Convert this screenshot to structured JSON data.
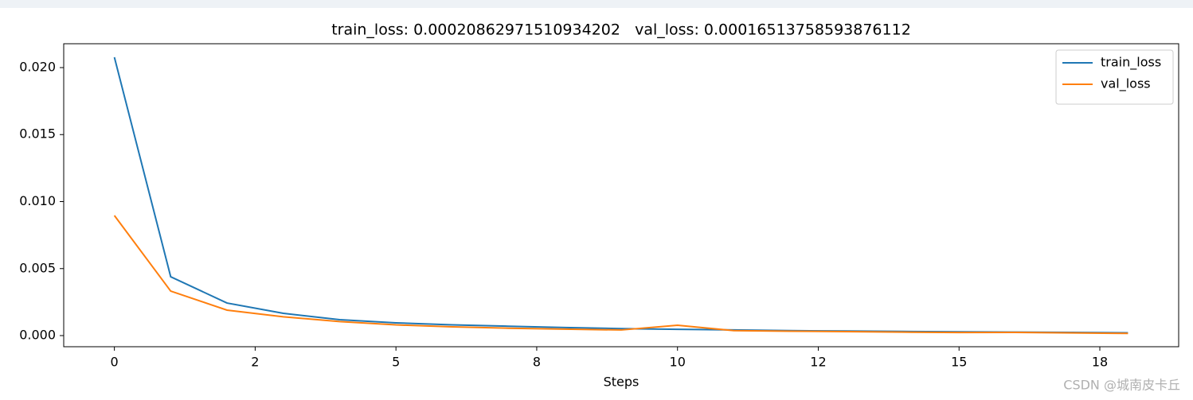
{
  "chart_data": {
    "type": "line",
    "title": "train_loss: 0.00020862971510934202   val_loss: 0.00016513758593876112",
    "xlabel": "Steps",
    "watermark": "CSDN @城南皮卡丘",
    "x": [
      0,
      1,
      2,
      3,
      4,
      5,
      6,
      7,
      8,
      9,
      10,
      11,
      12,
      13,
      14,
      15,
      16,
      17,
      18
    ],
    "series": [
      {
        "name": "train_loss",
        "color": "#1f77b4",
        "values": [
          0.02077,
          0.00439,
          0.00243,
          0.00166,
          0.00119,
          0.00095,
          0.0008,
          0.0007,
          0.0006,
          0.00052,
          0.00047,
          0.00042,
          0.00037,
          0.00034,
          0.00031,
          0.00028,
          0.00026,
          0.00024,
          0.00021
        ]
      },
      {
        "name": "val_loss",
        "color": "#ff7f0e",
        "values": [
          0.00896,
          0.00332,
          0.0019,
          0.0014,
          0.00105,
          0.0008,
          0.00065,
          0.00055,
          0.00048,
          0.00042,
          0.00077,
          0.00037,
          0.00033,
          0.0003,
          0.00026,
          0.00023,
          0.00024,
          0.0002,
          0.000165
        ]
      }
    ],
    "xlim": [
      -0.9,
      18.9
    ],
    "xticks": [
      0,
      {
        "value": 2.5,
        "label": "2"
      },
      5,
      {
        "value": 7.5,
        "label": "8"
      },
      10,
      {
        "value": 12.5,
        "label": "12"
      },
      15,
      {
        "value": 17.5,
        "label": "18"
      }
    ],
    "ylim": [
      -0.00083,
      0.02178
    ],
    "yticks": [
      {
        "value": 0,
        "label": "0.000"
      },
      0.005,
      {
        "value": 0.01,
        "label": "0.010"
      },
      0.015,
      {
        "value": 0.02,
        "label": "0.020"
      }
    ],
    "grid": false,
    "legend": "upper right"
  }
}
